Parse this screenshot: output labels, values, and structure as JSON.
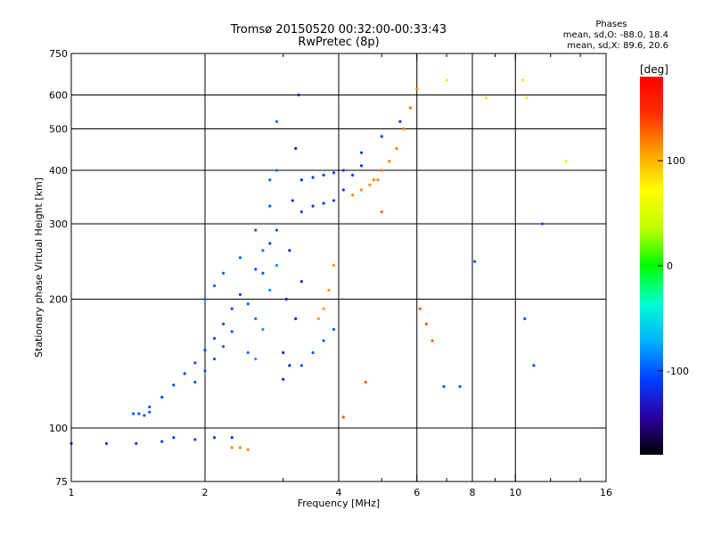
{
  "chart_data": {
    "type": "scatter",
    "title": "Tromsø 20150520 00:32:00-00:33:43",
    "subtitle": "RwPretec (8p)",
    "xlabel": "Frequency [MHz]",
    "ylabel": "Stationary phase Virtual Height [km]",
    "x_scale": "log",
    "y_scale": "log",
    "xlim": [
      1,
      16
    ],
    "ylim": [
      75,
      750
    ],
    "x_ticks": [
      1,
      2,
      4,
      6,
      8,
      10,
      16
    ],
    "x_gridlines": [
      2,
      4,
      6,
      8,
      10
    ],
    "x_minor_ticks": [
      3,
      5,
      7,
      9,
      12,
      14
    ],
    "y_ticks": [
      75,
      100,
      200,
      300,
      400,
      500,
      600,
      750
    ],
    "y_gridlines": [
      100,
      200,
      300,
      400,
      500,
      600
    ],
    "grid": true,
    "colorbar": {
      "label": "[deg]",
      "range": [
        -180,
        180
      ],
      "ticks": [
        100,
        0,
        -100
      ],
      "colors": [
        "#000000",
        "#2b00a0",
        "#0040ff",
        "#00b0ff",
        "#00ffd0",
        "#00ff00",
        "#c0ff00",
        "#ffff00",
        "#ffa000",
        "#ff3000",
        "#ff0000"
      ]
    },
    "stats": {
      "title": "Phases",
      "line1": "mean, sd,O: -88.0, 18.4",
      "line2": "mean, sd,X:  89.6, 20.6"
    },
    "series": [
      {
        "phase": -110,
        "x": [
          1.0,
          1.2,
          1.4,
          1.6,
          1.7,
          1.9,
          2.1,
          2.3
        ],
        "y": [
          92,
          92,
          92,
          93,
          95,
          94,
          95,
          95
        ]
      },
      {
        "phase": -100,
        "x": [
          1.38,
          1.42,
          1.46,
          1.5
        ],
        "y": [
          108,
          108,
          107,
          109
        ]
      },
      {
        "phase": -105,
        "x": [
          1.5,
          1.6,
          1.7,
          1.8,
          1.9,
          2.0,
          2.1,
          2.2,
          2.3,
          2.4,
          2.6,
          2.8
        ],
        "y": [
          112,
          118,
          126,
          134,
          142,
          152,
          162,
          175,
          190,
          205,
          235,
          270
        ]
      },
      {
        "phase": -100,
        "x": [
          1.9,
          2.0,
          2.1,
          2.2,
          2.3,
          2.5,
          2.7,
          2.9
        ],
        "y": [
          128,
          136,
          145,
          155,
          168,
          195,
          230,
          290
        ]
      },
      {
        "phase": -95,
        "x": [
          2.0,
          2.1,
          2.2,
          2.4,
          2.6,
          2.8,
          2.9
        ],
        "y": [
          200,
          215,
          230,
          250,
          290,
          330,
          400
        ]
      },
      {
        "phase": -90,
        "x": [
          2.5,
          2.6,
          2.7,
          2.8,
          2.9
        ],
        "y": [
          150,
          180,
          260,
          380,
          520
        ]
      },
      {
        "phase": -80,
        "x": [
          2.6,
          2.7,
          2.8,
          2.9
        ],
        "y": [
          145,
          170,
          210,
          240
        ]
      },
      {
        "phase": -125,
        "x": [
          3.0,
          3.05,
          3.1,
          3.15,
          3.2,
          3.25
        ],
        "y": [
          150,
          200,
          260,
          340,
          450,
          600
        ]
      },
      {
        "phase": -120,
        "x": [
          3.0,
          3.1,
          3.2,
          3.3
        ],
        "y": [
          130,
          140,
          180,
          220
        ]
      },
      {
        "phase": -110,
        "x": [
          3.3,
          3.5,
          3.7,
          3.9,
          4.1,
          4.3,
          4.5
        ],
        "y": [
          320,
          330,
          335,
          340,
          360,
          390,
          410
        ]
      },
      {
        "phase": -110,
        "x": [
          3.3,
          3.5,
          3.7,
          3.9,
          4.1,
          4.5,
          5.0,
          5.5
        ],
        "y": [
          380,
          385,
          390,
          395,
          400,
          440,
          480,
          520
        ]
      },
      {
        "phase": -100,
        "x": [
          3.3,
          3.5,
          3.7,
          3.9
        ],
        "y": [
          140,
          150,
          160,
          170
        ]
      },
      {
        "phase": 110,
        "x": [
          3.6,
          3.7,
          3.8,
          3.9
        ],
        "y": [
          180,
          190,
          210,
          240
        ]
      },
      {
        "phase": 115,
        "x": [
          4.3,
          4.5,
          4.7,
          4.9
        ],
        "y": [
          350,
          360,
          370,
          380
        ]
      },
      {
        "phase": 120,
        "x": [
          4.8,
          5.0,
          5.2,
          5.4,
          5.6,
          5.8,
          6.0
        ],
        "y": [
          380,
          400,
          420,
          450,
          500,
          560,
          620
        ]
      },
      {
        "phase": 115,
        "x": [
          2.3,
          2.4,
          2.5
        ],
        "y": [
          90,
          90,
          89
        ]
      },
      {
        "phase": 80,
        "x": [
          7.0,
          8.6,
          10.4,
          10.6,
          13.0
        ],
        "y": [
          650,
          590,
          650,
          590,
          420
        ]
      },
      {
        "phase": 130,
        "x": [
          4.1,
          4.6,
          5.0,
          6.1,
          6.3,
          6.5
        ],
        "y": [
          106,
          128,
          320,
          190,
          175,
          160
        ]
      },
      {
        "phase": -100,
        "x": [
          6.9,
          7.5,
          8.1,
          10.5,
          11.0,
          11.5
        ],
        "y": [
          125,
          125,
          245,
          180,
          140,
          300
        ]
      }
    ]
  }
}
